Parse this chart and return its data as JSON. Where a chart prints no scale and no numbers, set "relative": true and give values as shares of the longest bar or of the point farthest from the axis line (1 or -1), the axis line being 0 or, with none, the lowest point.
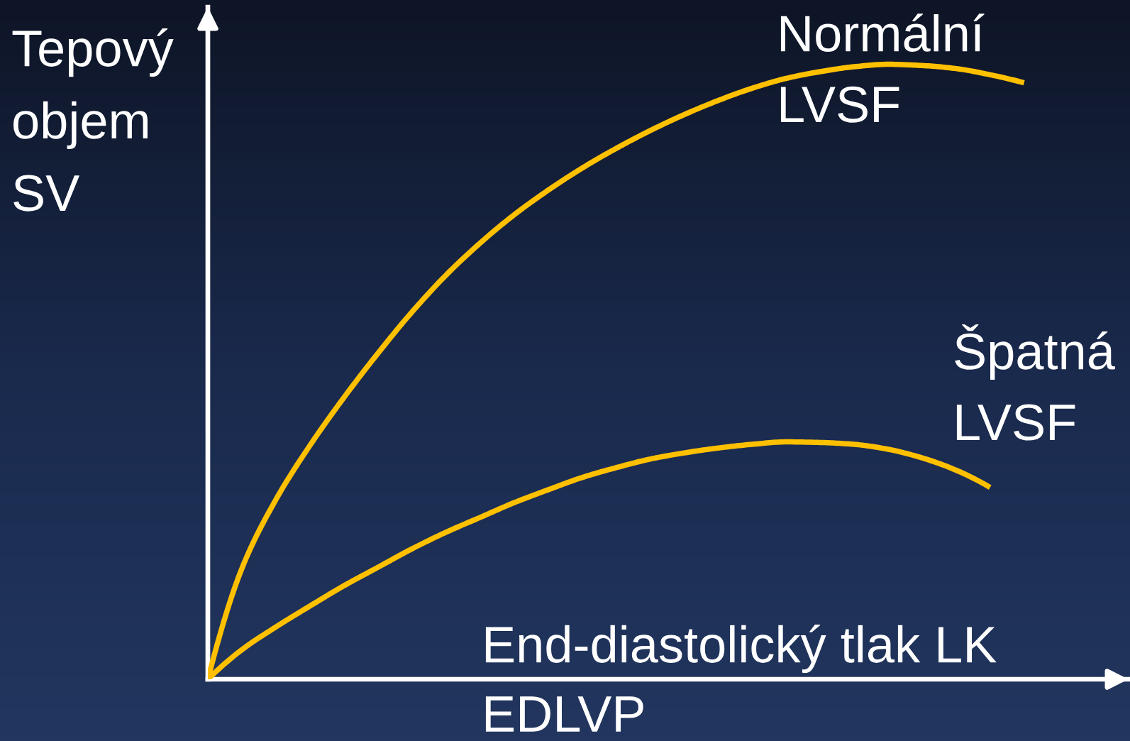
{
  "chart_data": {
    "type": "line",
    "relative": true,
    "xlabel": "End-diastolický tlak LK\nEDLVP",
    "ylabel": "Tepový\nobjem\nSV",
    "categories": [
      null,
      null,
      null,
      null,
      null,
      null,
      null,
      null,
      null,
      null,
      null,
      null,
      null,
      null,
      null,
      null,
      null,
      null,
      null,
      null,
      null,
      null,
      null,
      null,
      null
    ],
    "series": [
      {
        "name": "Normální\nLVSF",
        "color": "#ffc000",
        "values": [
          0,
          0.18,
          0.292,
          0.38,
          0.458,
          0.53,
          0.597,
          0.657,
          0.709,
          0.755,
          0.795,
          0.831,
          0.863,
          0.892,
          0.918,
          0.941,
          0.961,
          0.977,
          0.988,
          0.996,
          1.0,
          0.998,
          0.993,
          0.983,
          0.97
        ]
      },
      {
        "name": "Špatná\nLVSF",
        "color": "#ffc000",
        "values": [
          0,
          0.048,
          0.085,
          0.119,
          0.152,
          0.182,
          0.212,
          0.239,
          0.263,
          0.287,
          0.308,
          0.328,
          0.344,
          0.358,
          0.368,
          0.376,
          0.382,
          0.386,
          0.385,
          0.382,
          0.374,
          0.36,
          0.34,
          0.312,
          null
        ]
      }
    ],
    "legend": false,
    "grid": false
  }
}
